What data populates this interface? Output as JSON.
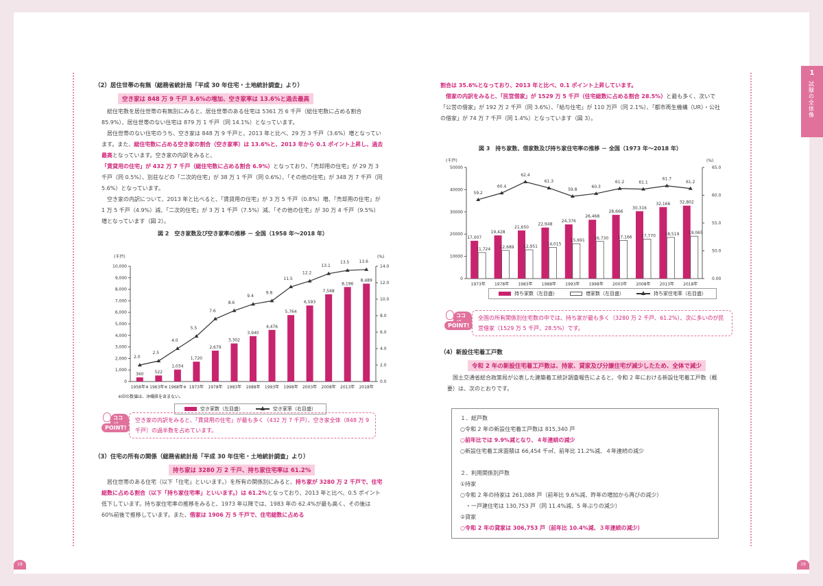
{
  "left": {
    "h_residence": "（2）居住世帯の有無（総務省統計局「平成 30 年住宅・土地統計調査」より）",
    "hl_vacant": "空き家は 848 万 9 千戸 3.6%の増加、空き家率は 13.6%と過去最高",
    "para1": [
      {
        "t": "総住宅数を居住世帯の有無別にみると、居住世帯のある住宅は 5361 万 6 千戸（総住宅数に占める割合 85.9%）、居住世帯のない住宅は 879 万 1 千戸（同 14.1%）となっています。",
        "p": false
      }
    ],
    "para2": [
      {
        "t": "居住世帯のない住宅のうち、空き家は 848 万 9 千戸と、2013 年と比べ、29 万 3 千戸（3.6%）増となっています。また、",
        "p": false
      },
      {
        "t": "総住宅数に占める空き家の割合（空き家率）は 13.6%と、2013 年から 0.1 ポイント上昇し、過去最高",
        "p": true
      },
      {
        "t": "となっています。空き家の内訳をみると、",
        "p": false
      },
      {
        "t": "「賃貸用の住宅」が 432 万 7 千戸（総住宅数に占める割合 6.9%）",
        "p": true
      },
      {
        "t": "となっており、「売却用の住宅」が 29 万 3 千戸（同 0.5%）、別荘などの「二次的住宅」が 38 万 1 千戸（同 0.6%）、「その他の住宅」が 348 万 7 千戸（同 5.6%）となっています。",
        "p": false
      }
    ],
    "para3": [
      {
        "t": "空き家の内訳について、2013 年と比べると、「賃貸用の住宅」が 3 万 5 千戸（0.8%）増、「売却用の住宅」が 1 万 5 千戸（4.9%）減、「二次的住宅」が 3 万 1 千戸（7.5%）減、「その他の住宅」が 30 万 4 千戸（9.5%）増となっています（図 2）。",
        "p": false
      }
    ],
    "fig2_title": "図 2　空き家数及び空き家率の推移 － 全国（1958 年～2018 年）",
    "fig2_note": "※印の数値は、沖縄県を含まない。",
    "legend2": {
      "a": "空き家数（左目盛）",
      "b": "空き家率（右目盛）"
    },
    "point_icon_top": "ココが",
    "point_icon_bot": "POINT!",
    "point1": "空き家の内訳をみると、「賃貸用の住宅」が最も多く（432 万 7 千戸）、空き家全体（848 万 9 千戸）の過半数を占めています。",
    "h_ownership": "（3）住宅の所有の関係（総務省統計局「平成 30 年住宅・土地統計調査」より）",
    "hl_owned": "持ち家は 3280 万 2 千戸、持ち家住宅率は 61.2%",
    "para4": [
      {
        "t": "居住世帯のある住宅（以下「住宅」といいます。）を所有の関係別にみると、",
        "p": false
      },
      {
        "t": "持ち家が 3280 万 2 千戸で、住宅総数に占める割合（以下「持ち家住宅率」といいます。）は 61.2%",
        "p": true
      },
      {
        "t": "となっており、2013 年と比べ、0.5 ポイント低下しています。持ち家住宅率の推移をみると、1973 年以降では、1983 年の 62.4%が最も高く、その後は 60%前後で推移しています。また、",
        "p": false
      },
      {
        "t": "借家は 1906 万 5 千戸で、住宅総数に占める",
        "p": true
      }
    ],
    "page_no": "18"
  },
  "right": {
    "para5": [
      {
        "t": "割合は 35.6%となっており、2013 年と比べ、0.1 ポイント上昇しています。",
        "p": true
      }
    ],
    "para6": [
      {
        "t": "借家の内訳をみると、「民営借家」が 1529 万 5 千戸（住宅総数に占める割合 28.5%）",
        "p": true
      },
      {
        "t": "と最も多く、次いで「公営の借家」が 192 万 2 千戸（同 3.6%）、「給与住宅」が 110 万戸（同 2.1%）、「都市再生機構（UR）・公社の借家」が 74 万 7 千戸（同 1.4%）となっています（図 3）。",
        "p": false
      }
    ],
    "fig3_title": "図 3　持ち家数、借家数及び持ち家住宅率の推移 － 全国（1973 年～2018 年）",
    "legend3": {
      "a": "持ち家数（左目盛）",
      "b": "借家数（左目盛）",
      "c": "持ち家住宅率（右目盛）"
    },
    "point2": "全国の所有関係別住宅数の中では、持ち家が最も多く（3280 万 2 千戸、61.2%）、次に多いのが民営借家（1529 万 5 千戸、28.5%）です。",
    "h_newhousing": "（4）新設住宅着工戸数",
    "hl_newhousing": "令和 2 年の新設住宅着工戸数は、持家、貸家及び分譲住宅が減少したため、全体で減少",
    "para7": [
      {
        "t": "国土交通省総合政策局が公表した建築着工統計調査報告によると、令和 2 年における新設住宅着工戸数（概要）は、次のとおりです。",
        "p": false
      }
    ],
    "box": [
      {
        "t": "１．総戸数",
        "p": false
      },
      {
        "t": "○令和 2 年の新設住宅着工戸数は 815,340 戸",
        "p": false
      },
      {
        "t": "○前年比では 9.9%減となり、４年連続の減少",
        "p": true
      },
      {
        "t": "○新設住宅着工床面積は 66,454 千㎡、前年比 11.2%減、４年連続の減少",
        "p": false
      },
      {
        "t": "",
        "p": false
      },
      {
        "t": "２．利用関係別戸数",
        "p": false
      },
      {
        "t": "①持家",
        "p": false
      },
      {
        "t": "○令和 2 年の持家は 261,088 戸（前年比 9.6%減、昨年の増加から再びの減少）",
        "p": false
      },
      {
        "t": "　・一戸建住宅は 130,753 戸（同 11.4%減、5 年ぶりの減少）",
        "p": false
      },
      {
        "t": "②貸家",
        "p": false
      },
      {
        "t": "○令和 2 年の貸家は 306,753 戸（前年比 10.4%減、３年連続の減少）",
        "p": true
      }
    ],
    "tab_num": "1",
    "tab_text": "試験の全体像",
    "page_no": "19"
  },
  "chart_data": [
    {
      "type": "bar",
      "title": "図 2　空き家数及び空き家率の推移 － 全国（1958 年～2018 年）",
      "categories": [
        "1958年※",
        "1963年※",
        "1968年※",
        "1973年",
        "1978年",
        "1983年",
        "1988年",
        "1993年",
        "1998年",
        "2003年",
        "2008年",
        "2013年",
        "2018年"
      ],
      "series": [
        {
          "name": "空き家数（左目盛）",
          "type": "bar",
          "axis": "left",
          "values": [
            360,
            522,
            1034,
            1720,
            2679,
            3302,
            3940,
            4476,
            5764,
            6593,
            7568,
            8196,
            8489
          ]
        },
        {
          "name": "空き家率（右目盛）",
          "type": "line",
          "axis": "right",
          "values": [
            2.0,
            2.5,
            4.0,
            5.5,
            7.6,
            8.6,
            9.4,
            9.8,
            11.5,
            12.2,
            13.1,
            13.5,
            13.6
          ]
        }
      ],
      "y_left_label": "(千戸)",
      "y_right_label": "(%)",
      "y_left_ticks": [
        "0",
        "1,000",
        "2,000",
        "3,000",
        "4,000",
        "5,000",
        "6,000",
        "7,000",
        "8,000",
        "9,000",
        "10,000"
      ],
      "y_right_ticks": [
        "0.0",
        "2.0",
        "4.0",
        "6.0",
        "8.0",
        "10.0",
        "12.0",
        "14.0"
      ],
      "ylim_left": [
        0,
        10000
      ],
      "ylim_right": [
        0,
        14
      ],
      "bar_labels": [
        "360",
        "522",
        "1,034",
        "1,720",
        "2,679",
        "3,302",
        "3,940",
        "4,476",
        "5,764",
        "6,593",
        "7,568",
        "8,196",
        "8,489"
      ],
      "line_labels": [
        "2.0",
        "2.5",
        "4.0",
        "5.5",
        "7.6",
        "8.6",
        "9.4",
        "9.8",
        "11.5",
        "12.2",
        "13.1",
        "13.5",
        "13.6"
      ],
      "legend": "bottom",
      "colors": {
        "bar": "#c8246e",
        "line": "#333333"
      }
    },
    {
      "type": "bar",
      "title": "図 3　持ち家数、借家数及び持ち家住宅率の推移 － 全国（1973 年～2018 年）",
      "categories": [
        "1973年",
        "1978年",
        "1983年",
        "1988年",
        "1993年",
        "1998年",
        "2003年",
        "2008年",
        "2013年",
        "2018年"
      ],
      "series": [
        {
          "name": "持ち家数（左目盛）",
          "type": "bar",
          "axis": "left",
          "values": [
            17007,
            19428,
            21650,
            22948,
            24376,
            26468,
            28666,
            30316,
            32166,
            32802
          ]
        },
        {
          "name": "借家数（左目盛）",
          "type": "bar",
          "axis": "left",
          "values": [
            11724,
            12689,
            12951,
            14015,
            15691,
            16730,
            17166,
            17770,
            18519,
            19065
          ]
        },
        {
          "name": "持ち家住宅率（右目盛）",
          "type": "line",
          "axis": "right",
          "values": [
            59.2,
            60.4,
            62.4,
            61.3,
            59.8,
            60.3,
            61.2,
            61.1,
            61.7,
            61.2
          ]
        }
      ],
      "y_left_label": "(千戸)",
      "y_right_label": "(%)",
      "y_left_ticks": [
        "0",
        "10000",
        "20000",
        "30000",
        "40000",
        "50000"
      ],
      "y_right_ticks": [
        "0.00",
        "50.0",
        "55.0",
        "60.0",
        "65.0"
      ],
      "ylim_left": [
        0,
        50000
      ],
      "ylim_right_broken": [
        50,
        65
      ],
      "bar1_labels": [
        "17,007",
        "19,428",
        "21,650",
        "22,948",
        "24,376",
        "26,468",
        "28,666",
        "30,316",
        "32,166",
        "32,802"
      ],
      "bar2_labels": [
        "11,724",
        "12,689",
        "12,951",
        "14,015",
        "15,691",
        "16,730",
        "17,166",
        "17,770",
        "18,519",
        "19,065"
      ],
      "line_labels": [
        "59.2",
        "60.4",
        "62.4",
        "61.3",
        "59.8",
        "60.3",
        "61.2",
        "61.1",
        "61.7",
        "61.2"
      ],
      "legend": "bottom",
      "colors": {
        "bar1": "#c8246e",
        "bar2": "#ffffff",
        "line": "#333333"
      }
    }
  ]
}
